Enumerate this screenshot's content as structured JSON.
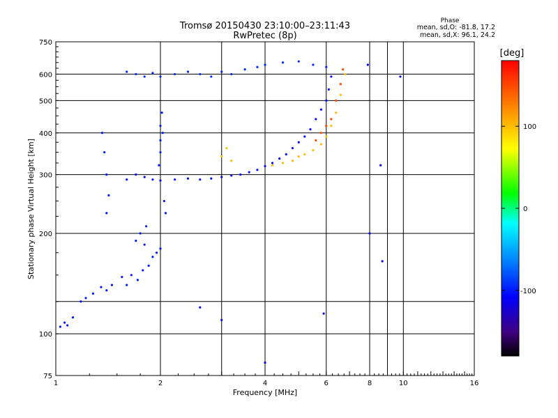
{
  "chart_data": {
    "type": "scatter",
    "title": "Tromsø 20150430 23:10:00–23:11:43",
    "subtitle": "RwPretec (8p)",
    "xlabel": "Frequency [MHz]",
    "ylabel": "Stationary phase Virtual Height [km]",
    "xscale": "log",
    "yscale": "log",
    "xlim": [
      1,
      16
    ],
    "ylim": [
      75,
      750
    ],
    "xticks": [
      1,
      2,
      4,
      6,
      8,
      10,
      16
    ],
    "xticks_minor_lines": [
      3,
      9
    ],
    "yticks": [
      75,
      100,
      200,
      300,
      400,
      500,
      600,
      750
    ],
    "yticks_minor_lines": [
      125
    ],
    "grid": true,
    "stats": {
      "header": "Phase",
      "line_o": "mean, sd,O: -81.8, 17.2",
      "line_x": "mean, sd,X:  96.1, 24.2"
    },
    "colorbar": {
      "label": "[deg]",
      "range": [
        -180,
        180
      ],
      "ticks": [
        100,
        0,
        -100
      ],
      "colormap": "rainbow"
    },
    "clusters": [
      {
        "name": "o_trace_low",
        "phase": -100,
        "points": [
          [
            1.03,
            105
          ],
          [
            1.06,
            108
          ],
          [
            1.08,
            106
          ],
          [
            1.12,
            112
          ],
          [
            1.18,
            125
          ],
          [
            1.22,
            128
          ],
          [
            1.28,
            132
          ],
          [
            1.35,
            138
          ],
          [
            1.4,
            135
          ],
          [
            1.45,
            140
          ],
          [
            1.55,
            148
          ],
          [
            1.6,
            140
          ],
          [
            1.65,
            150
          ],
          [
            1.72,
            145
          ],
          [
            1.78,
            155
          ],
          [
            1.85,
            160
          ],
          [
            1.9,
            170
          ],
          [
            1.95,
            175
          ],
          [
            2.0,
            180
          ],
          [
            1.7,
            190
          ],
          [
            1.75,
            200
          ],
          [
            1.8,
            185
          ],
          [
            1.82,
            210
          ]
        ]
      },
      {
        "name": "o_trace_main",
        "phase": -105,
        "points": [
          [
            1.6,
            290
          ],
          [
            1.7,
            300
          ],
          [
            1.8,
            295
          ],
          [
            1.9,
            290
          ],
          [
            2.0,
            288
          ],
          [
            2.2,
            290
          ],
          [
            2.4,
            292
          ],
          [
            2.6,
            290
          ],
          [
            2.8,
            292
          ],
          [
            3.0,
            295
          ],
          [
            3.2,
            298
          ],
          [
            3.4,
            300
          ],
          [
            3.6,
            305
          ],
          [
            3.8,
            310
          ],
          [
            4.0,
            318
          ],
          [
            4.2,
            325
          ],
          [
            4.4,
            335
          ],
          [
            4.6,
            345
          ],
          [
            4.8,
            360
          ],
          [
            5.0,
            375
          ],
          [
            5.2,
            390
          ],
          [
            5.4,
            410
          ],
          [
            5.6,
            440
          ],
          [
            5.8,
            470
          ],
          [
            6.0,
            500
          ],
          [
            6.1,
            540
          ],
          [
            6.2,
            590
          ]
        ]
      },
      {
        "name": "x_trace",
        "phase": 100,
        "points": [
          [
            3.0,
            340
          ],
          [
            3.1,
            360
          ],
          [
            3.2,
            330
          ],
          [
            4.2,
            320
          ],
          [
            4.5,
            325
          ],
          [
            4.8,
            330
          ],
          [
            5.0,
            340
          ],
          [
            5.2,
            345
          ],
          [
            5.5,
            355
          ],
          [
            5.8,
            370
          ],
          [
            6.0,
            390
          ],
          [
            6.2,
            420
          ],
          [
            6.4,
            460
          ],
          [
            6.6,
            520
          ],
          [
            6.8,
            600
          ]
        ]
      },
      {
        "name": "x_trace_red",
        "phase": 150,
        "points": [
          [
            5.6,
            380
          ],
          [
            5.8,
            400
          ],
          [
            6.0,
            420
          ],
          [
            6.2,
            440
          ],
          [
            6.4,
            500
          ],
          [
            6.6,
            560
          ],
          [
            6.7,
            620
          ]
        ]
      },
      {
        "name": "top_echo",
        "phase": -95,
        "points": [
          [
            1.6,
            610
          ],
          [
            1.7,
            600
          ],
          [
            1.8,
            590
          ],
          [
            1.9,
            605
          ],
          [
            2.0,
            590
          ],
          [
            2.2,
            600
          ],
          [
            2.4,
            610
          ],
          [
            2.6,
            600
          ],
          [
            2.8,
            590
          ],
          [
            3.0,
            610
          ],
          [
            3.2,
            600
          ],
          [
            3.5,
            620
          ],
          [
            3.8,
            630
          ],
          [
            4.0,
            640
          ],
          [
            4.5,
            650
          ],
          [
            5.0,
            655
          ],
          [
            5.5,
            640
          ],
          [
            6.0,
            630
          ]
        ]
      },
      {
        "name": "vertical_column",
        "phase": -100,
        "points": [
          [
            2.0,
            350
          ],
          [
            2.0,
            380
          ],
          [
            2.0,
            420
          ],
          [
            2.02,
            460
          ],
          [
            2.03,
            400
          ],
          [
            2.05,
            250
          ],
          [
            2.07,
            230
          ],
          [
            1.98,
            320
          ],
          [
            1.4,
            300
          ],
          [
            1.38,
            350
          ],
          [
            1.36,
            400
          ],
          [
            1.42,
            260
          ],
          [
            1.4,
            230
          ]
        ]
      },
      {
        "name": "scattered",
        "phase": -110,
        "points": [
          [
            2.6,
            120
          ],
          [
            3.0,
            110
          ],
          [
            4.0,
            82
          ],
          [
            5.9,
            115
          ],
          [
            8.0,
            200
          ],
          [
            8.6,
            320
          ],
          [
            8.7,
            165
          ],
          [
            9.8,
            590
          ],
          [
            7.9,
            640
          ]
        ]
      }
    ]
  }
}
